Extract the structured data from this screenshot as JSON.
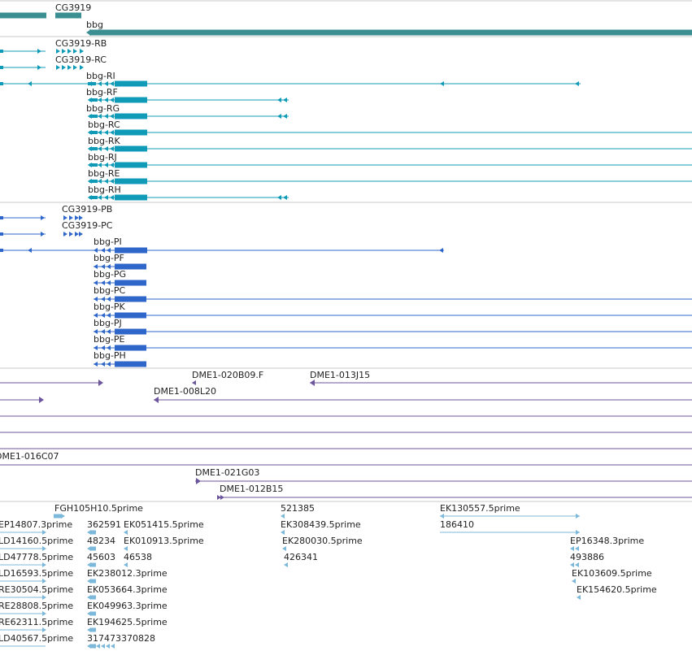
{
  "colors": {
    "gene": "#3b8f92",
    "transcript": "#0f9bb8",
    "protein": "#2f66c9",
    "clone": "#6b559c",
    "est": "#7cb8d9",
    "divider": "#c8c8c8"
  },
  "tracks": {
    "genes": [
      "CG3919",
      "bbg"
    ],
    "transcripts": [
      "CG3919-RB",
      "CG3919-RC",
      "bbg-RI",
      "bbg-RF",
      "bbg-RG",
      "bbg-RC",
      "bbg-RK",
      "bbg-RJ",
      "bbg-RE",
      "bbg-RH"
    ],
    "proteins": [
      "CG3919-PB",
      "CG3919-PC",
      "bbg-PI",
      "bbg-PF",
      "bbg-PG",
      "bbg-PC",
      "bbg-PK",
      "bbg-PJ",
      "bbg-PE",
      "bbg-PH"
    ],
    "clones": [
      "DME1-020B09.F",
      "DME1-013J15",
      "DME1-008L20",
      "DME1-016C07",
      "DME1-021G03",
      "DME1-012B15"
    ],
    "ests": [
      "FGH105H10.5prime",
      "521385",
      "EK130557.5prime",
      "EP14807.3prime",
      "362591",
      "EK051415.5prime",
      "EK308439.5prime",
      "186410",
      "LD14160.5prime",
      "48234",
      "EK010913.5prime",
      "EK280030.5prime",
      "EP16348.3prime",
      "LD47778.5prime",
      "45603",
      "46538",
      "426341",
      "493886",
      "LD16593.5prime",
      "EK238012.3prime",
      "EK103609.5prime",
      "RE30504.5prime",
      "EK053664.3prime",
      "EK154620.5prime",
      "RE28808.5prime",
      "EK049963.3prime",
      "RE62311.5prime",
      "EK194625.5prime",
      "LD40567.5prime",
      "317473370828"
    ]
  }
}
